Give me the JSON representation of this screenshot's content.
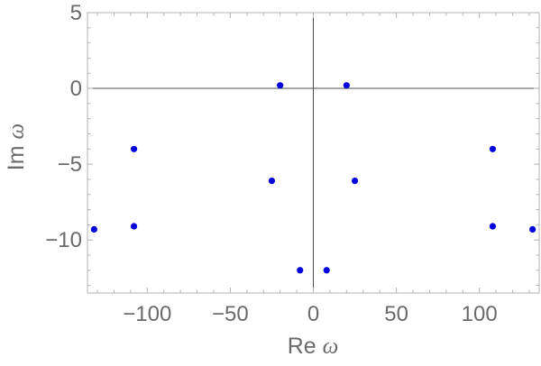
{
  "chart_data": {
    "type": "scatter",
    "title": "",
    "xlabel": "Re ω",
    "xlabel_parts": [
      "Re ",
      "ω"
    ],
    "ylabel": "Im ω",
    "ylabel_parts": [
      "Im ",
      "ω"
    ],
    "xlim": [
      -136,
      136
    ],
    "ylim": [
      -13.5,
      5
    ],
    "xticks": [
      -100,
      -50,
      0,
      50,
      100
    ],
    "xtick_labels": [
      "−100",
      "−50",
      "0",
      "50",
      "100"
    ],
    "yticks": [
      5,
      0,
      -5,
      -10
    ],
    "ytick_labels": [
      "5",
      "0",
      "−5",
      "−10"
    ],
    "grid": false,
    "zero_lines": true,
    "frame": true,
    "marker_color": "#0000dd",
    "frame_color": "#b3b3b3",
    "zero_line_color": "#4d4d4d",
    "points": [
      {
        "x": -20,
        "y": 0.2
      },
      {
        "x": 20,
        "y": 0.2
      },
      {
        "x": -108,
        "y": -4
      },
      {
        "x": 108,
        "y": -4
      },
      {
        "x": -25,
        "y": -6.1
      },
      {
        "x": 25,
        "y": -6.1
      },
      {
        "x": -108,
        "y": -9.1
      },
      {
        "x": 108,
        "y": -9.1
      },
      {
        "x": -132,
        "y": -9.3
      },
      {
        "x": 132,
        "y": -9.3
      },
      {
        "x": -8,
        "y": -12
      },
      {
        "x": 8,
        "y": -12
      }
    ]
  }
}
